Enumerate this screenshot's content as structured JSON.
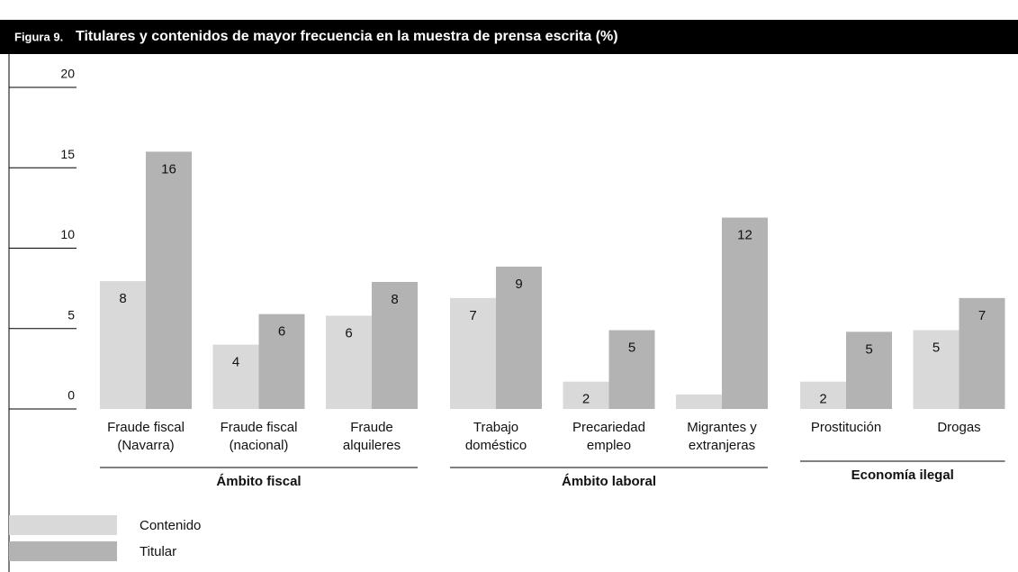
{
  "chart_data": {
    "type": "bar",
    "label": "Figura 9.",
    "title": "Titulares y contenidos de mayor frecuencia en la muestra de prensa escrita (%)",
    "groups": [
      {
        "label": "Ámbito fiscal",
        "categories": [
          "Fraude fiscal\n(Navarra)",
          "Fraude fiscal\n(nacional)",
          "Fraude\nalquileres"
        ]
      },
      {
        "label": "Ámbito laboral",
        "categories": [
          "Trabajo\ndoméstico",
          "Precariedad\nempleo",
          "Migrantes y\nextranjeras"
        ]
      },
      {
        "label": "Economía ilegal",
        "categories": [
          "Prostitución",
          "Drogas"
        ]
      }
    ],
    "series": [
      {
        "name": "Contenido",
        "color": "#d9d9d9",
        "values": [
          7.95,
          4.0,
          5.8,
          6.9,
          1.7,
          0.9,
          1.7,
          4.9
        ],
        "value_labels": [
          "8",
          "4",
          "6",
          "7",
          "2",
          null,
          "2",
          "5"
        ]
      },
      {
        "name": "Titular",
        "color": "#b3b3b3",
        "values": [
          16.0,
          5.9,
          7.9,
          8.85,
          4.9,
          11.9,
          4.8,
          6.9
        ],
        "value_labels": [
          "16",
          "6",
          "8",
          "9",
          "5",
          "12",
          "5",
          "7"
        ]
      }
    ],
    "ylim": [
      0,
      20
    ],
    "yticks": [
      0,
      5,
      10,
      15,
      20
    ]
  }
}
